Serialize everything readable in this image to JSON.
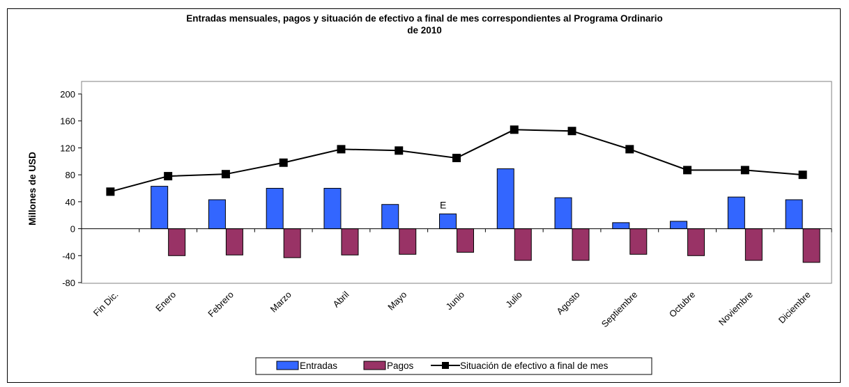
{
  "chart_data": {
    "type": "bar",
    "title_line1": "Entradas mensuales, pagos y situación de efectivo  a final de mes correspondientes al Programa Ordinario",
    "title_line2": "de 2010",
    "ylabel": "Millones de USD",
    "xlabel": "",
    "ylim": [
      -80,
      200
    ],
    "yticks": [
      200,
      160,
      120,
      80,
      40,
      0,
      -40,
      -80
    ],
    "categories": [
      "Fin Dic.",
      "Enero",
      "Febrero",
      "Marzo",
      "Abril",
      "Mayo",
      "Junio",
      "Julio",
      "Agosto",
      "Septiembre",
      "Octubre",
      "Noviembre",
      "Diciembre"
    ],
    "series": [
      {
        "name": "Entradas",
        "kind": "bar",
        "color": "#3366ff",
        "values": [
          null,
          63,
          43,
          60,
          60,
          36,
          22,
          89,
          46,
          9,
          11,
          47,
          43
        ]
      },
      {
        "name": "Pagos",
        "kind": "bar",
        "color": "#993366",
        "values": [
          null,
          -40,
          -39,
          -43,
          -39,
          -38,
          -35,
          -47,
          -47,
          -38,
          -40,
          -47,
          -50
        ]
      },
      {
        "name": "Situación de efectivo a final de mes",
        "kind": "line",
        "color": "#000000",
        "values": [
          55,
          78,
          81,
          98,
          118,
          116,
          105,
          147,
          145,
          118,
          87,
          87,
          80
        ]
      }
    ],
    "annotations": [
      {
        "text": "E",
        "category": "Junio"
      }
    ],
    "legend_position": "bottom",
    "grid": false
  }
}
